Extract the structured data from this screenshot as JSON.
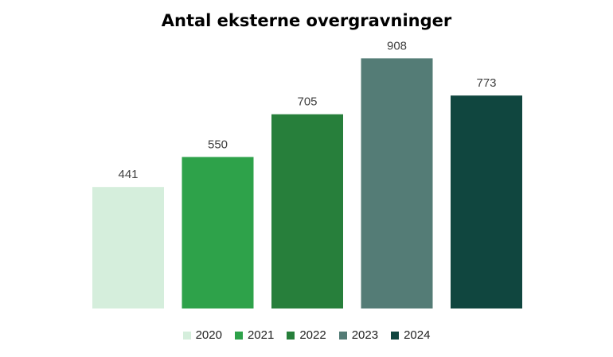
{
  "chart_data": {
    "type": "bar",
    "title": "Antal eksterne overgravninger",
    "categories": [
      "2020",
      "2021",
      "2022",
      "2023",
      "2024"
    ],
    "values": [
      441,
      550,
      705,
      908,
      773
    ],
    "colors": [
      "#d5eedc",
      "#2ea24a",
      "#277f3b",
      "#547c76",
      "#10463f"
    ],
    "ylim": [
      0,
      1000
    ],
    "xlabel": "",
    "ylabel": "",
    "grid": false,
    "legend_position": "bottom",
    "data_labels": true
  }
}
